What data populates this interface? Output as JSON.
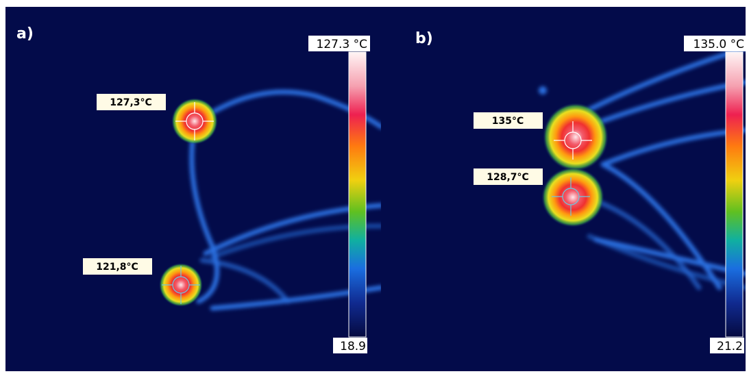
{
  "panels": [
    {
      "label": "a)",
      "scale_max": "127.3 °C",
      "scale_min": "18.9",
      "spots": [
        {
          "label": "127,3°C"
        },
        {
          "label": "121,8°C"
        }
      ]
    },
    {
      "label": "b)",
      "scale_max": "135.0 °C",
      "scale_min": "21.2",
      "spots": [
        {
          "label": "135°C"
        },
        {
          "label": "128,7°C"
        }
      ]
    }
  ]
}
